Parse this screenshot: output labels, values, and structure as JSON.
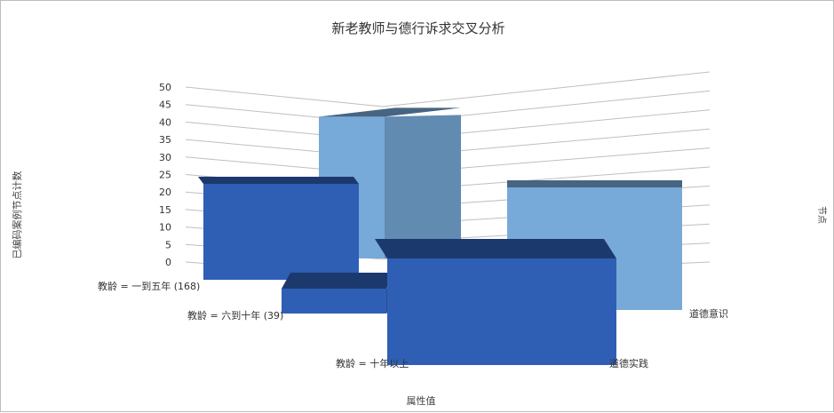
{
  "chart_data": {
    "type": "bar",
    "title": "新老教师与德行诉求交叉分析",
    "ylabel": "已编码案例节点计数",
    "xlabel": "属性值",
    "zlabel": "节点",
    "ylim": [
      0,
      50
    ],
    "yticks": [
      0,
      5,
      10,
      15,
      20,
      25,
      30,
      35,
      40,
      45,
      50
    ],
    "categories": [
      "教龄 = 一到五年 (168)",
      "教龄 = 六到十年 (39)",
      "教龄 = 十年以上"
    ],
    "series_labels": [
      "道德实践",
      "道德意识"
    ],
    "series": [
      {
        "name": "道德实践",
        "values": [
          24,
          2,
          6
        ],
        "color": "#2f5fb5"
      },
      {
        "name": "道德意识",
        "values": [
          0,
          42,
          12
        ],
        "color": "#77a9d9"
      }
    ],
    "grid": true,
    "projection": "3d-perspective"
  }
}
